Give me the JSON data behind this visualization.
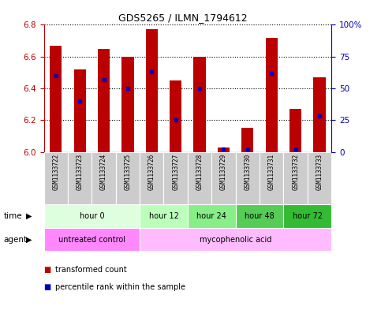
{
  "title": "GDS5265 / ILMN_1794612",
  "samples": [
    "GSM1133722",
    "GSM1133723",
    "GSM1133724",
    "GSM1133725",
    "GSM1133726",
    "GSM1133727",
    "GSM1133728",
    "GSM1133729",
    "GSM1133730",
    "GSM1133731",
    "GSM1133732",
    "GSM1133733"
  ],
  "bar_heights": [
    6.67,
    6.52,
    6.65,
    6.6,
    6.77,
    6.45,
    6.6,
    6.03,
    6.15,
    6.72,
    6.27,
    6.47
  ],
  "percentile_ranks": [
    60,
    40,
    57,
    50,
    63,
    25,
    50,
    2,
    2,
    62,
    2,
    28
  ],
  "bar_bottom": 6.0,
  "ylim": [
    6.0,
    6.8
  ],
  "yticks": [
    6.0,
    6.2,
    6.4,
    6.6,
    6.8
  ],
  "right_yticks": [
    0,
    25,
    50,
    75,
    100
  ],
  "right_ylabels": [
    "0",
    "25",
    "50",
    "75",
    "100%"
  ],
  "bar_color": "#bb0000",
  "dot_color": "#0000bb",
  "bg_color": "#ffffff",
  "grid_color": "#000000",
  "time_groups": [
    {
      "label": "hour 0",
      "start": 0,
      "end": 4,
      "color": "#ddffdd"
    },
    {
      "label": "hour 12",
      "start": 4,
      "end": 6,
      "color": "#bbffbb"
    },
    {
      "label": "hour 24",
      "start": 6,
      "end": 8,
      "color": "#88ee88"
    },
    {
      "label": "hour 48",
      "start": 8,
      "end": 10,
      "color": "#55cc55"
    },
    {
      "label": "hour 72",
      "start": 10,
      "end": 12,
      "color": "#33bb33"
    }
  ],
  "agent_groups": [
    {
      "label": "untreated control",
      "start": 0,
      "end": 4,
      "color": "#ff88ff"
    },
    {
      "label": "mycophenolic acid",
      "start": 4,
      "end": 12,
      "color": "#ffbbff"
    }
  ],
  "legend_red": "transformed count",
  "legend_blue": "percentile rank within the sample",
  "xlabel_time": "time",
  "xlabel_agent": "agent",
  "sample_bg": "#cccccc"
}
